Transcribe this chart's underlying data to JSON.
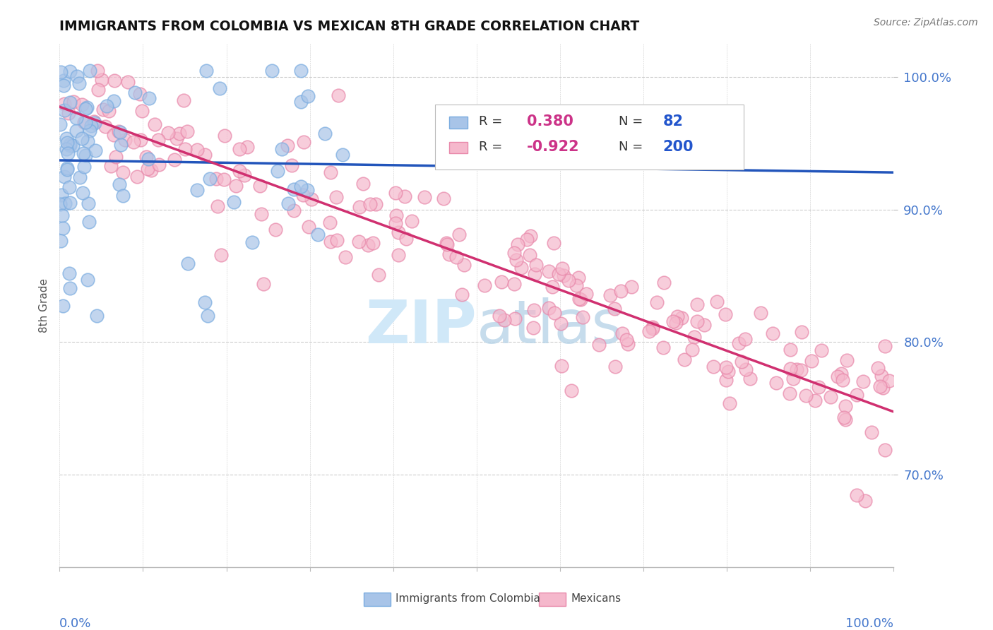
{
  "title": "IMMIGRANTS FROM COLOMBIA VS MEXICAN 8TH GRADE CORRELATION CHART",
  "source_text": "Source: ZipAtlas.com",
  "ylabel": "8th Grade",
  "x_min": 0.0,
  "x_max": 1.0,
  "y_min": 0.63,
  "y_max": 1.025,
  "y_tick_positions": [
    0.7,
    0.8,
    0.9,
    1.0
  ],
  "colombia_R": 0.38,
  "colombia_N": 82,
  "mexican_R": -0.922,
  "mexican_N": 200,
  "colombia_color": "#a8c4e8",
  "colombia_edge_color": "#7aace0",
  "colombia_line_color": "#2255bb",
  "mexican_color": "#f5b8cc",
  "mexican_edge_color": "#e888aa",
  "mexican_line_color": "#d03070",
  "watermark_color": "#d0e8f8",
  "tick_label_color": "#4477cc",
  "background_color": "#ffffff",
  "grid_color": "#cccccc"
}
